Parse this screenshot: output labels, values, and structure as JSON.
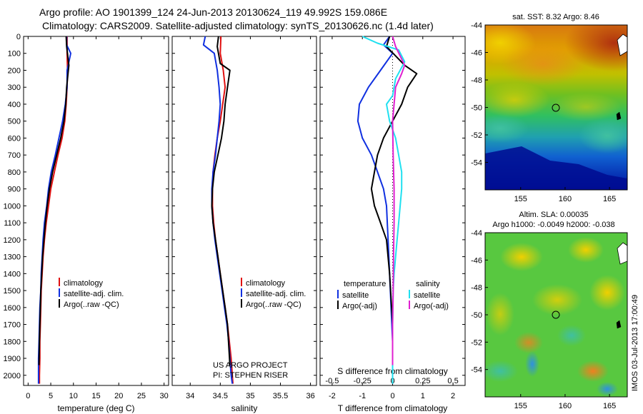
{
  "header": {
    "line1": "Argo profile: AO 1901399_124 24-Jun-2013 20130624_119 49.992S 159.086E",
    "line2": "Climatology: CARS2009. Satellite-adjusted climatology: synTS_20130626.nc (1.4d later)"
  },
  "colors": {
    "red": "#e01010",
    "blue": "#1030e0",
    "black": "#000000",
    "cyan": "#20e0f0",
    "magenta": "#e020d0",
    "panel_border": "#000000"
  },
  "chart_data": [
    {
      "type": "line",
      "panel": "temperature",
      "xlabel": "temperature (deg C)",
      "ylabel": "",
      "xlim": [
        -1,
        31
      ],
      "ylim": [
        2060,
        0
      ],
      "xticks": [
        0,
        5,
        10,
        15,
        20,
        25,
        30
      ],
      "yticks": [
        0,
        100,
        200,
        300,
        400,
        500,
        600,
        700,
        800,
        900,
        1000,
        1100,
        1200,
        1300,
        1400,
        1500,
        1600,
        1700,
        1800,
        1900,
        2000
      ],
      "legend": [
        "climatology",
        "satellite-adj. clim.",
        "Argo(..raw -QC)"
      ],
      "series": [
        {
          "name": "climatology",
          "color": "red",
          "x": [
            8.6,
            8.6,
            8.7,
            8.6,
            8.4,
            8.1,
            7.5,
            6.6,
            5.8,
            5.0,
            4.5,
            4.0,
            3.6,
            3.3,
            3.1,
            2.9,
            2.8,
            2.7,
            2.6,
            2.6,
            2.5,
            2.5
          ],
          "y": [
            0,
            100,
            200,
            300,
            400,
            500,
            600,
            700,
            800,
            900,
            1000,
            1100,
            1200,
            1300,
            1400,
            1500,
            1600,
            1700,
            1800,
            1900,
            2000,
            2050
          ]
        },
        {
          "name": "satellite-adj. clim.",
          "color": "blue",
          "x": [
            8.5,
            8.5,
            9.4,
            8.6,
            8.6,
            8.2,
            7.6,
            6.8,
            6.0,
            5.1,
            4.5,
            4.1,
            3.6,
            3.3,
            3.1,
            2.9,
            2.8,
            2.6,
            2.5,
            2.4,
            2.3,
            2.3
          ],
          "y": [
            0,
            50,
            100,
            200,
            300,
            400,
            500,
            600,
            700,
            800,
            900,
            1000,
            1100,
            1200,
            1300,
            1400,
            1500,
            1600,
            1700,
            1800,
            1900,
            2050
          ]
        },
        {
          "name": "Argo(..raw -QC)",
          "color": "black",
          "x": [
            8.4,
            8.5,
            9.0,
            8.8,
            8.5,
            8.3,
            7.9,
            7.2,
            6.3,
            5.4,
            4.7,
            4.2,
            3.8,
            3.5,
            3.2,
            3.0,
            2.8,
            2.7,
            2.6,
            2.5,
            2.4
          ],
          "y": [
            0,
            60,
            170,
            220,
            300,
            400,
            500,
            600,
            700,
            800,
            900,
            1000,
            1100,
            1200,
            1300,
            1400,
            1500,
            1600,
            1700,
            1800,
            1940
          ]
        }
      ]
    },
    {
      "type": "line",
      "panel": "salinity",
      "xlabel": "salinity",
      "ylabel": "",
      "xlim": [
        33.7,
        36.1
      ],
      "ylim": [
        2060,
        0
      ],
      "xticks": [
        34,
        34.5,
        35,
        35.5,
        36
      ],
      "xticklabels": [
        "34",
        "34.5",
        "35",
        "35.5",
        "36"
      ],
      "legend": [
        "climatology",
        "satellite-adj. clim.",
        "Argo(..raw -QC)"
      ],
      "annotation": [
        "US ARGO PROJECT",
        "PI: STEPHEN RISER"
      ],
      "series": [
        {
          "name": "climatology",
          "color": "red",
          "x": [
            34.51,
            34.5,
            34.55,
            34.58,
            34.54,
            34.5,
            34.45,
            34.41,
            34.38,
            34.37,
            34.37,
            34.39,
            34.42,
            34.46,
            34.5,
            34.54,
            34.58,
            34.62,
            34.65,
            34.68,
            34.7,
            34.71
          ],
          "y": [
            0,
            100,
            200,
            300,
            400,
            500,
            600,
            700,
            800,
            900,
            1000,
            1100,
            1200,
            1300,
            1400,
            1500,
            1600,
            1700,
            1800,
            1900,
            2000,
            2050
          ]
        },
        {
          "name": "satellite-adj. clim.",
          "color": "blue",
          "x": [
            34.25,
            34.22,
            34.4,
            34.45,
            34.48,
            34.5,
            34.48,
            34.45,
            34.42,
            34.38,
            34.36,
            34.36,
            34.38,
            34.41,
            34.45,
            34.49,
            34.53,
            34.57,
            34.61,
            34.64,
            34.66,
            34.68,
            34.7
          ],
          "y": [
            0,
            50,
            100,
            200,
            300,
            400,
            500,
            600,
            700,
            800,
            900,
            1000,
            1100,
            1200,
            1300,
            1400,
            1500,
            1600,
            1700,
            1800,
            1900,
            2000,
            2050
          ]
        },
        {
          "name": "Argo(..raw -QC)",
          "color": "black",
          "x": [
            34.47,
            34.45,
            34.5,
            34.66,
            34.62,
            34.58,
            34.56,
            34.52,
            34.46,
            34.4,
            34.37,
            34.36,
            34.38,
            34.42,
            34.46,
            34.5,
            34.54,
            34.58,
            34.62,
            34.66
          ],
          "y": [
            0,
            60,
            160,
            200,
            300,
            400,
            500,
            600,
            700,
            800,
            900,
            1000,
            1100,
            1200,
            1300,
            1400,
            1500,
            1600,
            1700,
            1940
          ]
        }
      ]
    },
    {
      "type": "line",
      "panel": "difference",
      "xlabel": "T difference from climatology",
      "xlabel2": "S difference from climatology",
      "xlim": [
        -2.4,
        2.4
      ],
      "ylim": [
        2060,
        0
      ],
      "xticks": [
        -2,
        -1,
        0,
        1,
        2
      ],
      "xticks_top": [
        -0.5,
        -0.25,
        0,
        0.25,
        0.5
      ],
      "xticklabels_top": [
        "-0.5",
        "-0.25",
        "0",
        "0.25",
        "0.5"
      ],
      "legend_temperature_title": "temperature",
      "legend_salinity_title": "salinity",
      "legend": [
        "satellite",
        "Argo(-adj)",
        "satellite",
        "Argo(-adj)"
      ],
      "series": [
        {
          "name": "satellite",
          "group": "temperature",
          "color": "blue",
          "x": [
            -0.1,
            -0.3,
            0.0,
            -0.4,
            -0.8,
            -1.1,
            -1.15,
            -1.0,
            -0.7,
            -0.5,
            -0.3,
            -0.2,
            -0.15,
            -0.1,
            -0.05,
            0.0,
            0.0,
            0.0
          ],
          "y": [
            0,
            50,
            100,
            200,
            300,
            400,
            500,
            600,
            700,
            800,
            900,
            1000,
            1200,
            1400,
            1600,
            1800,
            1950,
            2050
          ]
        },
        {
          "name": "Argo(-adj)",
          "group": "temperature",
          "color": "black",
          "x": [
            -0.1,
            -0.2,
            0.4,
            0.8,
            0.5,
            0.3,
            0.0,
            -0.3,
            -0.5,
            -0.6,
            -0.7,
            -0.6,
            -0.4,
            -0.2,
            -0.1,
            0.0,
            0.0
          ],
          "y": [
            0,
            60,
            170,
            220,
            300,
            400,
            500,
            600,
            700,
            800,
            900,
            1000,
            1100,
            1200,
            1400,
            1700,
            1940
          ]
        },
        {
          "name": "satellite",
          "group": "salinity",
          "color": "cyan",
          "x": [
            -1.0,
            -0.5,
            0.2,
            0.4,
            0.1,
            0.0,
            -0.2,
            -0.1,
            0.1,
            0.2,
            0.3,
            0.3,
            0.25,
            0.2,
            0.15,
            0.1,
            0.05,
            0.02,
            0.0,
            0.0
          ],
          "y": [
            0,
            40,
            80,
            150,
            250,
            350,
            400,
            500,
            600,
            700,
            800,
            900,
            1000,
            1100,
            1200,
            1300,
            1400,
            1500,
            1700,
            2050
          ]
        },
        {
          "name": "Argo(-adj)",
          "group": "salinity",
          "color": "magenta",
          "x": [
            0.0,
            0.1,
            0.4,
            0.3,
            0.1,
            0.05,
            0.0,
            0.02,
            0.05,
            0.05,
            0.03,
            0.02,
            0.0,
            0.0
          ],
          "y": [
            0,
            60,
            170,
            220,
            300,
            400,
            500,
            700,
            900,
            1100,
            1300,
            1500,
            1700,
            1940
          ]
        }
      ]
    },
    {
      "type": "heatmap",
      "panel": "sst_map",
      "title": "sat. SST: 8.32  Argo: 8.46",
      "xlim": [
        151,
        167
      ],
      "ylim": [
        -56,
        -44
      ],
      "xticks": [
        155,
        160,
        165
      ],
      "yticks": [
        -44,
        -46,
        -48,
        -50,
        -52,
        -54
      ],
      "marker": {
        "lon": 159.086,
        "lat": -49.992
      }
    },
    {
      "type": "heatmap",
      "panel": "sla_map",
      "title": "Altim. SLA: 0.00035",
      "subtitle": "Argo h1000: -0.0049  h2000: -0.038",
      "xlim": [
        151,
        167
      ],
      "ylim": [
        -56,
        -44
      ],
      "xticks": [
        155,
        160,
        165
      ],
      "yticks": [
        -44,
        -46,
        -48,
        -50,
        -52,
        -54
      ],
      "marker": {
        "lon": 159.086,
        "lat": -49.992
      },
      "side_label": "IMOS 03-Jul-2013 17:00:49"
    }
  ]
}
